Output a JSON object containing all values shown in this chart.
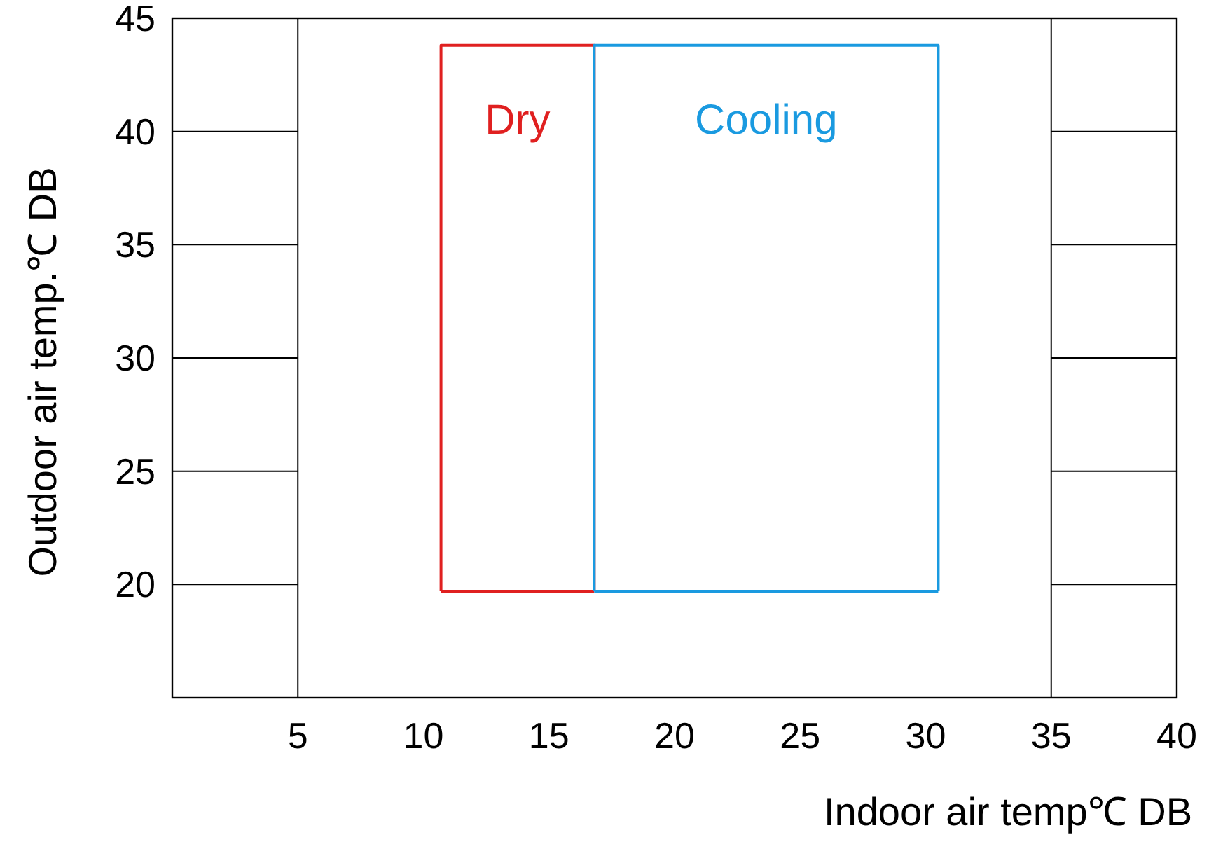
{
  "chart_data": {
    "type": "line",
    "xlabel": "Indoor air temp℃ DB",
    "ylabel": "Outdoor air temp.℃ DB",
    "xlim": [
      0,
      40
    ],
    "xticks": [
      5,
      10,
      15,
      20,
      25,
      30,
      35,
      40
    ],
    "ylim": [
      15,
      45
    ],
    "yticks": [
      20,
      25,
      30,
      35,
      40,
      45
    ],
    "marker": "none",
    "line_style": "solid",
    "ref_lines": [
      {
        "axis": "x",
        "value": 5,
        "color": "#000000"
      },
      {
        "axis": "x",
        "value": 35,
        "color": "#000000"
      },
      {
        "axis": "y",
        "value": 20,
        "color": "#000000"
      },
      {
        "axis": "y",
        "value": 25,
        "color": "#000000"
      },
      {
        "axis": "y",
        "value": 30,
        "color": "#000000"
      },
      {
        "axis": "y",
        "value": 35,
        "color": "#000000"
      },
      {
        "axis": "y",
        "value": 40,
        "color": "#000000"
      }
    ],
    "series": [
      {
        "name": "Dry",
        "color": "#e02020",
        "x": [
          10.7,
          10.7,
          16.8,
          16.8
        ],
        "values": [
          19.7,
          43.8,
          43.8,
          19.7
        ]
      },
      {
        "color": "#e02020",
        "x": [
          10.7,
          16.8
        ],
        "values": [
          19.7,
          19.7
        ]
      },
      {
        "name": "Cooling",
        "color": "#1a9ae0",
        "x": [
          16.8,
          16.8,
          30.5,
          30.5
        ],
        "values": [
          19.7,
          43.8,
          43.8,
          19.7
        ]
      },
      {
        "color": "#1a9ae0",
        "x": [
          16.8,
          30.5
        ],
        "values": [
          19.7,
          19.7
        ]
      }
    ]
  }
}
